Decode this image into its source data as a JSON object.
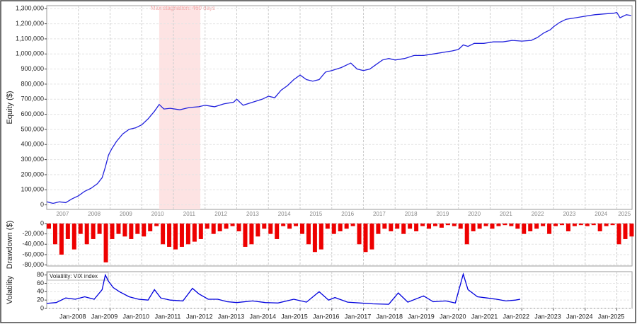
{
  "chart_data": [
    {
      "type": "line",
      "ylabel": "Equity ($)",
      "color": "#2222dd",
      "grid": true,
      "annotation": "Max stagnation: 460 days",
      "shade": [
        2010.55,
        2011.85
      ],
      "shade_color": "#fde3e3",
      "xlim": [
        2007.0,
        2025.48
      ],
      "ylim": [
        -30000,
        1320000
      ],
      "yticks": [
        0,
        {
          "value": 100000,
          "label": "100,000"
        },
        {
          "value": 200000,
          "label": "200,000"
        },
        {
          "value": 300000,
          "label": "300,000"
        },
        {
          "value": 400000,
          "label": "400,000"
        },
        {
          "value": 500000,
          "label": "500,000"
        },
        {
          "value": 600000,
          "label": "600,000"
        },
        {
          "value": 700000,
          "label": "700,000"
        },
        {
          "value": 800000,
          "label": "800,000"
        },
        {
          "value": 900000,
          "label": "900,000"
        },
        {
          "value": 1000000,
          "label": "1,000,000"
        },
        {
          "value": 1100000,
          "label": "1,100,000"
        },
        {
          "value": 1200000,
          "label": "1,200,000"
        },
        {
          "value": 1300000,
          "label": "1,300,000"
        }
      ],
      "year_labels": [
        {
          "value": 2007.5,
          "label": "2007"
        },
        {
          "value": 2008.5,
          "label": "2008"
        },
        {
          "value": 2009.5,
          "label": "2009"
        },
        {
          "value": 2010.5,
          "label": "2010"
        },
        {
          "value": 2011.5,
          "label": "2011"
        },
        {
          "value": 2012.5,
          "label": "2012"
        },
        {
          "value": 2013.5,
          "label": "2013"
        },
        {
          "value": 2014.5,
          "label": "2014"
        },
        {
          "value": 2015.5,
          "label": "2015"
        },
        {
          "value": 2016.5,
          "label": "2016"
        },
        {
          "value": 2017.5,
          "label": "2017"
        },
        {
          "value": 2018.5,
          "label": "2018"
        },
        {
          "value": 2019.5,
          "label": "2019"
        },
        {
          "value": 2020.5,
          "label": "2020"
        },
        {
          "value": 2021.5,
          "label": "2021"
        },
        {
          "value": 2022.5,
          "label": "2022"
        },
        {
          "value": 2023.5,
          "label": "2023"
        },
        {
          "value": 2024.5,
          "label": "2024"
        },
        {
          "value": 2025.24,
          "label": "2025"
        }
      ],
      "x": [
        2007.0,
        2007.2,
        2007.4,
        2007.6,
        2007.8,
        2008.0,
        2008.2,
        2008.4,
        2008.6,
        2008.75,
        2008.85,
        2008.95,
        2009.05,
        2009.2,
        2009.4,
        2009.6,
        2009.8,
        2010.0,
        2010.2,
        2010.4,
        2010.55,
        2010.7,
        2010.9,
        2011.2,
        2011.5,
        2011.8,
        2012.0,
        2012.3,
        2012.6,
        2012.9,
        2013.0,
        2013.2,
        2013.5,
        2013.8,
        2014.0,
        2014.2,
        2014.4,
        2014.6,
        2014.8,
        2015.0,
        2015.2,
        2015.4,
        2015.6,
        2015.8,
        2016.0,
        2016.3,
        2016.6,
        2016.8,
        2017.0,
        2017.2,
        2017.4,
        2017.6,
        2017.8,
        2018.0,
        2018.3,
        2018.6,
        2018.9,
        2019.2,
        2019.5,
        2019.8,
        2020.0,
        2020.15,
        2020.3,
        2020.5,
        2020.8,
        2021.1,
        2021.4,
        2021.7,
        2022.0,
        2022.3,
        2022.5,
        2022.7,
        2022.9,
        2023.0,
        2023.2,
        2023.4,
        2023.7,
        2024.0,
        2024.3,
        2024.6,
        2024.9,
        2025.0,
        2025.1,
        2025.3,
        2025.45
      ],
      "values": [
        20000,
        10000,
        20000,
        15000,
        40000,
        60000,
        90000,
        110000,
        140000,
        180000,
        250000,
        330000,
        370000,
        420000,
        470000,
        500000,
        510000,
        530000,
        570000,
        620000,
        665000,
        635000,
        640000,
        630000,
        645000,
        650000,
        660000,
        650000,
        670000,
        680000,
        700000,
        660000,
        680000,
        700000,
        720000,
        710000,
        760000,
        790000,
        830000,
        860000,
        830000,
        820000,
        830000,
        880000,
        890000,
        910000,
        940000,
        900000,
        890000,
        900000,
        930000,
        960000,
        970000,
        960000,
        970000,
        990000,
        990000,
        1000000,
        1010000,
        1020000,
        1030000,
        1060000,
        1050000,
        1070000,
        1070000,
        1080000,
        1080000,
        1090000,
        1085000,
        1090000,
        1110000,
        1140000,
        1160000,
        1180000,
        1210000,
        1230000,
        1240000,
        1250000,
        1260000,
        1265000,
        1270000,
        1275000,
        1240000,
        1260000,
        1255000
      ]
    },
    {
      "type": "bar",
      "ylabel": "Drawdown ($)",
      "color": "#ee0000",
      "grid": true,
      "xlim": [
        2007.0,
        2025.48
      ],
      "ylim": [
        -82000,
        0
      ],
      "yticks": [
        0,
        {
          "value": -20000,
          "label": "-20,000"
        },
        {
          "value": -40000,
          "label": "-40,000"
        },
        {
          "value": -60000,
          "label": "-60,000"
        },
        {
          "value": -80000,
          "label": "-80,000"
        }
      ],
      "x": [
        2007.0,
        2007.2,
        2007.4,
        2007.6,
        2007.8,
        2008.0,
        2008.2,
        2008.4,
        2008.6,
        2008.8,
        2009.0,
        2009.2,
        2009.4,
        2009.6,
        2009.8,
        2010.0,
        2010.2,
        2010.4,
        2010.6,
        2010.8,
        2011.0,
        2011.2,
        2011.4,
        2011.6,
        2011.8,
        2012.0,
        2012.2,
        2012.4,
        2012.6,
        2012.8,
        2013.0,
        2013.2,
        2013.4,
        2013.6,
        2013.8,
        2014.0,
        2014.2,
        2014.4,
        2014.6,
        2014.8,
        2015.0,
        2015.2,
        2015.4,
        2015.6,
        2015.8,
        2016.0,
        2016.2,
        2016.4,
        2016.6,
        2016.8,
        2017.0,
        2017.2,
        2017.4,
        2017.6,
        2017.8,
        2018.0,
        2018.2,
        2018.4,
        2018.6,
        2018.8,
        2019.0,
        2019.2,
        2019.4,
        2019.6,
        2019.8,
        2020.0,
        2020.2,
        2020.4,
        2020.6,
        2020.8,
        2021.0,
        2021.2,
        2021.4,
        2021.6,
        2021.8,
        2022.0,
        2022.2,
        2022.4,
        2022.6,
        2022.8,
        2023.0,
        2023.2,
        2023.4,
        2023.6,
        2023.8,
        2024.0,
        2024.2,
        2024.4,
        2024.6,
        2024.8,
        2025.0,
        2025.2,
        2025.4
      ],
      "values": [
        -10000,
        -40000,
        -60000,
        -30000,
        -50000,
        -20000,
        -40000,
        -30000,
        -20000,
        -75000,
        -30000,
        -20000,
        -25000,
        -30000,
        -20000,
        -25000,
        -15000,
        -5000,
        -40000,
        -45000,
        -50000,
        -45000,
        -40000,
        -35000,
        -30000,
        -10000,
        -20000,
        -15000,
        -10000,
        -5000,
        -15000,
        -45000,
        -40000,
        -25000,
        -10000,
        -20000,
        -30000,
        -5000,
        -10000,
        -5000,
        -20000,
        -40000,
        -55000,
        -50000,
        -10000,
        -20000,
        -15000,
        -10000,
        -5000,
        -40000,
        -55000,
        -50000,
        -20000,
        -10000,
        -15000,
        -10000,
        -20000,
        -10000,
        -15000,
        -5000,
        -10000,
        -5000,
        -8000,
        -3000,
        -5000,
        -10000,
        -40000,
        -15000,
        -10000,
        -5000,
        -10000,
        -5000,
        -3000,
        -5000,
        -10000,
        -20000,
        -15000,
        -10000,
        -5000,
        -20000,
        -5000,
        -3000,
        -15000,
        -5000,
        -3000,
        -5000,
        -3000,
        -15000,
        -5000,
        -3000,
        -40000,
        -30000,
        -25000
      ]
    },
    {
      "type": "line",
      "ylabel": "Volatility",
      "legend": "Volatility: VIX index",
      "color": "#0000dd",
      "grid": true,
      "xlim": [
        2007.0,
        2025.48
      ],
      "ylim": [
        0,
        88
      ],
      "yticks": [
        0,
        20,
        40,
        60,
        80
      ],
      "xticks": [
        {
          "value": 2008,
          "label": "Jan-2008"
        },
        {
          "value": 2009,
          "label": "Jan-2009"
        },
        {
          "value": 2010,
          "label": "Jan-2010"
        },
        {
          "value": 2011,
          "label": "Jan-2011"
        },
        {
          "value": 2012,
          "label": "Jan-2012"
        },
        {
          "value": 2013,
          "label": "Jan-2013"
        },
        {
          "value": 2014,
          "label": "Jan-2014"
        },
        {
          "value": 2015,
          "label": "Jan-2015"
        },
        {
          "value": 2016,
          "label": "Jan-2016"
        },
        {
          "value": 2017,
          "label": "Jan-2017"
        },
        {
          "value": 2018,
          "label": "Jan-2018"
        },
        {
          "value": 2019,
          "label": "Jan-2019"
        },
        {
          "value": 2020,
          "label": "Jan-2020"
        },
        {
          "value": 2021,
          "label": "Jan-2021"
        },
        {
          "value": 2022,
          "label": "Jan-2022"
        },
        {
          "value": 2023,
          "label": "Jan-2023"
        },
        {
          "value": 2024,
          "label": "Jan-2024"
        },
        {
          "value": 2025,
          "label": "Jan-2025"
        }
      ],
      "x": [
        2007.0,
        2007.3,
        2007.6,
        2007.9,
        2008.2,
        2008.5,
        2008.75,
        2008.85,
        2008.95,
        2009.1,
        2009.3,
        2009.6,
        2009.9,
        2010.2,
        2010.4,
        2010.6,
        2010.9,
        2011.3,
        2011.6,
        2011.8,
        2012.1,
        2012.4,
        2012.7,
        2013.0,
        2013.5,
        2013.9,
        2014.3,
        2014.8,
        2015.2,
        2015.6,
        2015.9,
        2016.1,
        2016.5,
        2016.9,
        2017.3,
        2017.8,
        2018.1,
        2018.4,
        2018.9,
        2019.2,
        2019.6,
        2019.9,
        2020.15,
        2020.3,
        2020.6,
        2020.9,
        2021.2,
        2021.5,
        2021.8,
        2021.95
      ],
      "values": [
        12,
        14,
        25,
        22,
        28,
        22,
        45,
        80,
        65,
        50,
        40,
        28,
        22,
        20,
        45,
        25,
        20,
        18,
        48,
        35,
        22,
        22,
        16,
        14,
        18,
        14,
        13,
        22,
        15,
        40,
        20,
        26,
        15,
        13,
        11,
        10,
        37,
        15,
        30,
        16,
        18,
        13,
        82,
        45,
        28,
        25,
        22,
        18,
        20,
        22
      ]
    }
  ]
}
